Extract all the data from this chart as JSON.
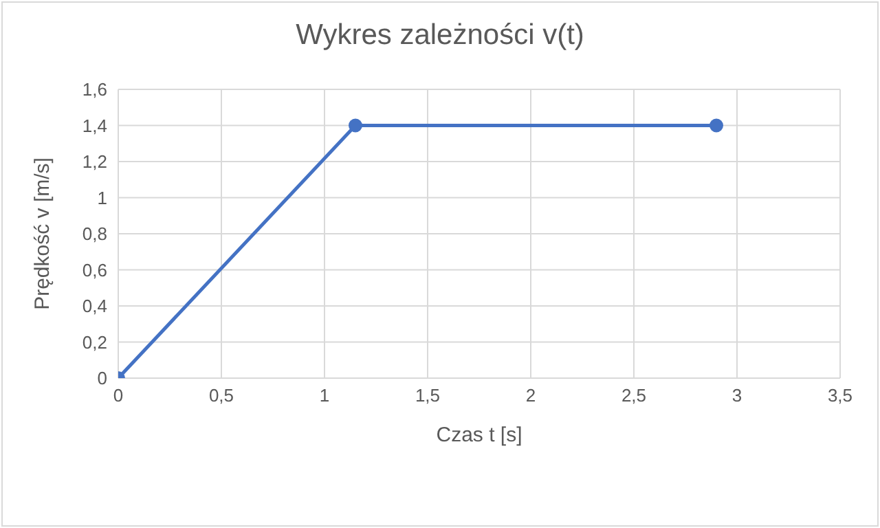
{
  "chart_data": {
    "type": "line",
    "title": "Wykres zależności v(t)",
    "xlabel": "Czas t [s]",
    "ylabel": "Prędkość v [m/s]",
    "x": [
      0,
      1.15,
      2.9
    ],
    "series": [
      {
        "color": "#4472c4",
        "values": [
          0,
          1.4,
          1.4
        ]
      }
    ],
    "xlim": [
      0,
      3.5
    ],
    "xticks": [
      0,
      {
        "value": 0.5,
        "label": "0,5"
      },
      1,
      {
        "value": 1.5,
        "label": "1,5"
      },
      2,
      {
        "value": 2.5,
        "label": "2,5"
      },
      3,
      {
        "value": 3.5,
        "label": "3,5"
      }
    ],
    "ylim": [
      0,
      1.6
    ],
    "yticks": [
      0,
      {
        "value": 0.2,
        "label": "0,2"
      },
      {
        "value": 0.4,
        "label": "0,4"
      },
      {
        "value": 0.6,
        "label": "0,6"
      },
      {
        "value": 0.8,
        "label": "0,8"
      },
      1,
      {
        "value": 1.2,
        "label": "1,2"
      },
      {
        "value": 1.4,
        "label": "1,4"
      },
      {
        "value": 1.6,
        "label": "1,6"
      }
    ],
    "grid": true,
    "marker": "circle",
    "line_style": "solid",
    "legend": false
  }
}
